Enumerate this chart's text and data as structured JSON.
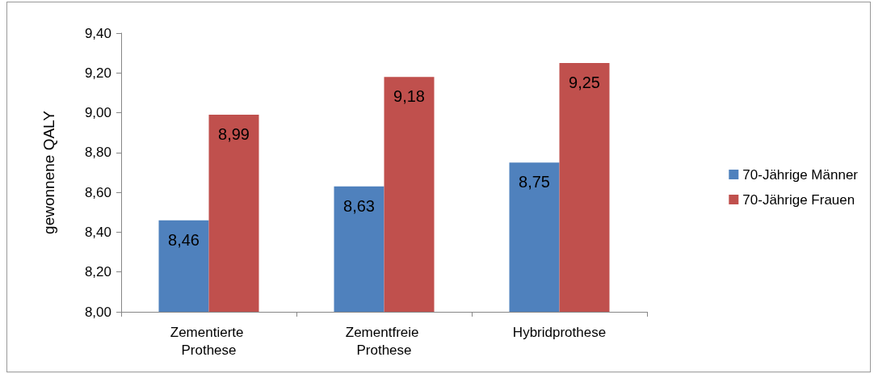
{
  "chart_data": {
    "type": "bar",
    "ylabel": "gewonnene QALY",
    "categories": [
      "Zementierte Prothese",
      "Zementfreie Prothese",
      "Hybridprothese"
    ],
    "series": [
      {
        "name": "70-Jährige Männer",
        "color": "#4f81bd",
        "values": [
          8.46,
          8.63,
          8.75
        ],
        "value_labels": [
          "8,46",
          "8,63",
          "8,75"
        ]
      },
      {
        "name": "70-Jährige Frauen",
        "color": "#c0504d",
        "values": [
          8.99,
          9.18,
          9.25
        ],
        "value_labels": [
          "8,99",
          "9,18",
          "9,25"
        ]
      }
    ],
    "ylim": [
      8,
      9.4
    ],
    "yticks": [
      {
        "value": 8,
        "label": "8,00"
      },
      {
        "value": 8.2,
        "label": "8,20"
      },
      {
        "value": 8.4,
        "label": "8,40"
      },
      {
        "value": 8.6,
        "label": "8,60"
      },
      {
        "value": 8.8,
        "label": "8,80"
      },
      {
        "value": 9,
        "label": "9,00"
      },
      {
        "value": 9.2,
        "label": "9,20"
      },
      {
        "value": 9.4,
        "label": "9,40"
      }
    ],
    "grid": false,
    "legend": "right"
  }
}
